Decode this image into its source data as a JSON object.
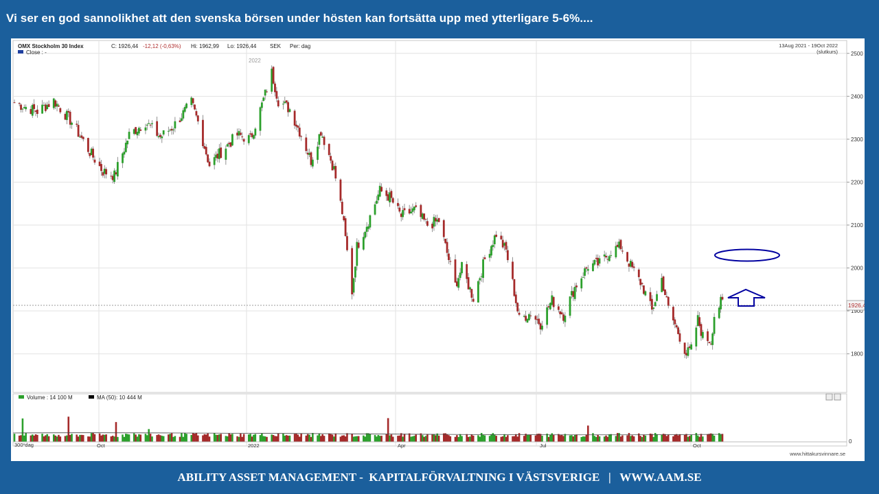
{
  "headline": "Vi ser en god sannolikhet att den svenska börsen under hösten kan fortsätta upp med ytterligare 5-6%....",
  "footer": "ABILITY ASSET MANAGEMENT -  KAPITALFÖRVALTNING I VÄSTSVERIGE   |   WWW.AAM.SE",
  "colors": {
    "frame": "#1b5f9c",
    "up": "#2ca02c",
    "down": "#a52a2a",
    "annotation": "#0000a0"
  },
  "chart_header": {
    "index_name": "OMX Stockholm 30 Index",
    "close_label": "C: 1926,44",
    "change_label": "-12,12 (-0,63%)",
    "high_label": "Hi: 1962,99",
    "low_label": "Lo: 1926,44",
    "currency": "SEK",
    "period": "Per: dag",
    "close_legend": "Close : -",
    "date_range": "13Aug 2021 - 19Oct 2022",
    "price_mode": "(slutkurs)",
    "year_marker": "2022",
    "last_price_label": "1926,4"
  },
  "volume_header": {
    "volume_label": "Volume : 14 100 M",
    "ma_label": "MA (50): 10 444 M",
    "zero_label": "0"
  },
  "x_labels": [
    "300*dag",
    "Oct",
    "2022",
    "Apr",
    "Jul",
    "Oct"
  ],
  "source": "www.hittakursvinnare.se",
  "chart_data": {
    "type": "line",
    "title": "OMX Stockholm 30 Index",
    "xlabel": "",
    "ylabel": "",
    "y_ticks": [
      1800,
      1900,
      2000,
      2100,
      2200,
      2300,
      2400,
      2500
    ],
    "ylim": [
      1710,
      2530
    ],
    "xlim": [
      "2021-08-13",
      "2022-10-19"
    ],
    "last_close": 1926.44,
    "grid": true,
    "series": [
      {
        "name": "Close",
        "points": [
          {
            "x": "2021-08-13",
            "y": 2385
          },
          {
            "x": "2021-08-27",
            "y": 2365
          },
          {
            "x": "2021-09-06",
            "y": 2390
          },
          {
            "x": "2021-09-17",
            "y": 2340
          },
          {
            "x": "2021-09-28",
            "y": 2270
          },
          {
            "x": "2021-10-06",
            "y": 2225
          },
          {
            "x": "2021-10-13",
            "y": 2215
          },
          {
            "x": "2021-10-22",
            "y": 2310
          },
          {
            "x": "2021-11-01",
            "y": 2340
          },
          {
            "x": "2021-11-10",
            "y": 2305
          },
          {
            "x": "2021-11-18",
            "y": 2330
          },
          {
            "x": "2021-11-29",
            "y": 2385
          },
          {
            "x": "2021-12-03",
            "y": 2340
          },
          {
            "x": "2021-12-10",
            "y": 2240
          },
          {
            "x": "2021-12-17",
            "y": 2270
          },
          {
            "x": "2021-12-27",
            "y": 2310
          },
          {
            "x": "2022-01-04",
            "y": 2300
          },
          {
            "x": "2022-01-11",
            "y": 2380
          },
          {
            "x": "2022-01-17",
            "y": 2455
          },
          {
            "x": "2022-01-21",
            "y": 2390
          },
          {
            "x": "2022-01-28",
            "y": 2370
          },
          {
            "x": "2022-02-04",
            "y": 2310
          },
          {
            "x": "2022-02-10",
            "y": 2250
          },
          {
            "x": "2022-02-16",
            "y": 2320
          },
          {
            "x": "2022-02-24",
            "y": 2230
          },
          {
            "x": "2022-03-01",
            "y": 2130
          },
          {
            "x": "2022-03-07",
            "y": 1945
          },
          {
            "x": "2022-03-10",
            "y": 2050
          },
          {
            "x": "2022-03-17",
            "y": 2110
          },
          {
            "x": "2022-03-24",
            "y": 2180
          },
          {
            "x": "2022-03-30",
            "y": 2165
          },
          {
            "x": "2022-04-06",
            "y": 2120
          },
          {
            "x": "2022-04-14",
            "y": 2135
          },
          {
            "x": "2022-04-22",
            "y": 2100
          },
          {
            "x": "2022-04-29",
            "y": 2110
          },
          {
            "x": "2022-05-09",
            "y": 1960
          },
          {
            "x": "2022-05-13",
            "y": 2000
          },
          {
            "x": "2022-05-20",
            "y": 1930
          },
          {
            "x": "2022-05-27",
            "y": 2020
          },
          {
            "x": "2022-06-03",
            "y": 2080
          },
          {
            "x": "2022-06-09",
            "y": 2040
          },
          {
            "x": "2022-06-13",
            "y": 1965
          },
          {
            "x": "2022-06-17",
            "y": 1880
          },
          {
            "x": "2022-06-24",
            "y": 1895
          },
          {
            "x": "2022-06-30",
            "y": 1870
          },
          {
            "x": "2022-07-07",
            "y": 1925
          },
          {
            "x": "2022-07-14",
            "y": 1890
          },
          {
            "x": "2022-07-21",
            "y": 1955
          },
          {
            "x": "2022-07-29",
            "y": 2005
          },
          {
            "x": "2022-08-05",
            "y": 2010
          },
          {
            "x": "2022-08-12",
            "y": 2040
          },
          {
            "x": "2022-08-18",
            "y": 2050
          },
          {
            "x": "2022-08-24",
            "y": 2005
          },
          {
            "x": "2022-08-31",
            "y": 1960
          },
          {
            "x": "2022-09-06",
            "y": 1900
          },
          {
            "x": "2022-09-12",
            "y": 1975
          },
          {
            "x": "2022-09-16",
            "y": 1905
          },
          {
            "x": "2022-09-23",
            "y": 1840
          },
          {
            "x": "2022-09-27",
            "y": 1800
          },
          {
            "x": "2022-09-30",
            "y": 1810
          },
          {
            "x": "2022-10-04",
            "y": 1880
          },
          {
            "x": "2022-10-07",
            "y": 1840
          },
          {
            "x": "2022-10-12",
            "y": 1830
          },
          {
            "x": "2022-10-14",
            "y": 1890
          },
          {
            "x": "2022-10-19",
            "y": 1926.44
          }
        ]
      }
    ]
  }
}
